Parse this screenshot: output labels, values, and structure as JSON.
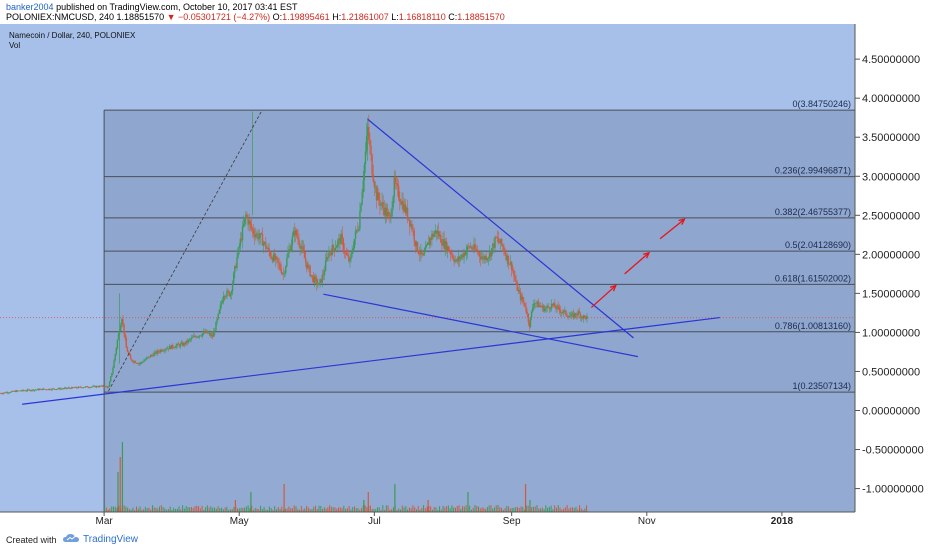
{
  "header": {
    "author": "banker2004",
    "published_text": "published on TradingView.com, October 10, 2017 03:41 EST",
    "symbol": "POLONIEX:NMCUSD, 240",
    "last": "1.18851570",
    "change": "▼ −0.05301721 (−4.27%)",
    "o_label": "O:",
    "o": "1.19895461",
    "h_label": "H:",
    "h": "1.21861007",
    "l_label": "L:",
    "l": "1.16818110",
    "c_label": "C:",
    "c": "1.18851570"
  },
  "chart_legend": {
    "title": "Namecoin / Dollar, 240, POLONIEX",
    "vol": "Vol"
  },
  "footer": {
    "created_with": "Created with",
    "brand": "TradingView"
  },
  "colors": {
    "background": "#a6c0ea",
    "fib_zone": "#8fa6ce",
    "trendline": "#2b35d6",
    "projection": "#e8141b",
    "candle_up": "#3d9b5a",
    "candle_down": "#d35a3a"
  },
  "chart_data": {
    "type": "candlestick",
    "ylim": [
      -1.3,
      4.95
    ],
    "y_ticks": [
      "4.50000000",
      "4.00000000",
      "3.50000000",
      "3.00000000",
      "2.50000000",
      "2.00000000",
      "1.50000000",
      "1.00000000",
      "0.50000000",
      "0.00000000",
      "-0.50000000",
      "-1.00000000"
    ],
    "y_tick_values": [
      4.5,
      4.0,
      3.5,
      3.0,
      2.5,
      2.0,
      1.5,
      1.0,
      0.5,
      0.0,
      -0.5,
      -1.0
    ],
    "x_ticks": [
      "Mar",
      "May",
      "Jul",
      "Sep",
      "Nov",
      "2018"
    ],
    "x_tick_days": [
      59,
      120,
      181,
      243,
      304,
      365
    ],
    "xlim_days": [
      12,
      398
    ],
    "current_price": 1.1885157,
    "fibonacci": {
      "start_day": 59,
      "end_day": 399,
      "levels": [
        {
          "label": "0(3.84750246)",
          "value": 3.84750246
        },
        {
          "label": "0.236(2.99496871)",
          "value": 2.99496871
        },
        {
          "label": "0.382(2.46755377)",
          "value": 2.46755377
        },
        {
          "label": "0.5(2.04128690)",
          "value": 2.0412869
        },
        {
          "label": "0.618(1.61502002)",
          "value": 1.61502002
        },
        {
          "label": "0.786(1.00813160)",
          "value": 1.0081316
        },
        {
          "label": "1(0.23507134)",
          "value": 0.23507134
        }
      ]
    },
    "price_path": [
      [
        12,
        0.22
      ],
      [
        20,
        0.25
      ],
      [
        30,
        0.27
      ],
      [
        40,
        0.28
      ],
      [
        50,
        0.3
      ],
      [
        58,
        0.31
      ],
      [
        61,
        0.3
      ],
      [
        63,
        0.55
      ],
      [
        65,
        0.9
      ],
      [
        67,
        1.2
      ],
      [
        69,
        0.8
      ],
      [
        71,
        0.65
      ],
      [
        75,
        0.6
      ],
      [
        80,
        0.7
      ],
      [
        85,
        0.78
      ],
      [
        90,
        0.82
      ],
      [
        95,
        0.85
      ],
      [
        100,
        0.95
      ],
      [
        105,
        1.0
      ],
      [
        108,
        0.95
      ],
      [
        110,
        1.15
      ],
      [
        113,
        1.5
      ],
      [
        116,
        1.5
      ],
      [
        118,
        1.8
      ],
      [
        120,
        2.1
      ],
      [
        123,
        2.5
      ],
      [
        126,
        2.3
      ],
      [
        130,
        2.2
      ],
      [
        134,
        2.0
      ],
      [
        137,
        1.9
      ],
      [
        140,
        1.75
      ],
      [
        142,
        2.0
      ],
      [
        145,
        2.3
      ],
      [
        148,
        2.1
      ],
      [
        150,
        1.9
      ],
      [
        153,
        1.7
      ],
      [
        156,
        1.6
      ],
      [
        158,
        1.75
      ],
      [
        160,
        2.0
      ],
      [
        163,
        2.1
      ],
      [
        166,
        2.2
      ],
      [
        168,
        2.0
      ],
      [
        170,
        1.9
      ],
      [
        172,
        2.2
      ],
      [
        174,
        2.4
      ],
      [
        176,
        3.0
      ],
      [
        178,
        3.6
      ],
      [
        180,
        3.1
      ],
      [
        182,
        2.75
      ],
      [
        185,
        2.6
      ],
      [
        188,
        2.45
      ],
      [
        190,
        2.9
      ],
      [
        193,
        2.7
      ],
      [
        196,
        2.5
      ],
      [
        198,
        2.35
      ],
      [
        200,
        2.1
      ],
      [
        203,
        1.95
      ],
      [
        206,
        2.2
      ],
      [
        209,
        2.3
      ],
      [
        212,
        2.15
      ],
      [
        215,
        2.05
      ],
      [
        218,
        1.9
      ],
      [
        221,
        2.0
      ],
      [
        224,
        2.1
      ],
      [
        227,
        2.05
      ],
      [
        230,
        1.95
      ],
      [
        233,
        2.0
      ],
      [
        236,
        2.2
      ],
      [
        239,
        2.1
      ],
      [
        241,
        1.95
      ],
      [
        243,
        1.85
      ],
      [
        245,
        1.6
      ],
      [
        247,
        1.45
      ],
      [
        249,
        1.35
      ],
      [
        251,
        1.1
      ],
      [
        253,
        1.4
      ],
      [
        255,
        1.35
      ],
      [
        258,
        1.3
      ],
      [
        261,
        1.35
      ],
      [
        264,
        1.3
      ],
      [
        267,
        1.25
      ],
      [
        270,
        1.2
      ],
      [
        273,
        1.25
      ],
      [
        275,
        1.2
      ],
      [
        277,
        1.19
      ]
    ],
    "trendlines": [
      {
        "name": "support_rising",
        "from": [
          22,
          0.08
        ],
        "to": [
          337,
          1.19
        ]
      },
      {
        "name": "wedge_upper",
        "from": [
          178,
          3.73
        ],
        "to": [
          298,
          0.93
        ]
      },
      {
        "name": "wedge_lower",
        "from": [
          158,
          1.49
        ],
        "to": [
          300,
          0.69
        ]
      },
      {
        "name": "dashed_impulse",
        "from": [
          61,
          0.25
        ],
        "to": [
          130,
          3.83
        ]
      }
    ],
    "projection_arrows": [
      {
        "from": [
          279,
          1.32
        ],
        "to": [
          290,
          1.6
        ]
      },
      {
        "from": [
          294,
          1.75
        ],
        "to": [
          305,
          2.02
        ]
      },
      {
        "from": [
          310,
          2.2
        ],
        "to": [
          321,
          2.45
        ]
      }
    ],
    "volume_spikes_days": [
      65,
      66,
      67,
      118,
      125,
      140,
      176,
      178,
      190,
      205,
      223,
      249,
      251
    ]
  }
}
